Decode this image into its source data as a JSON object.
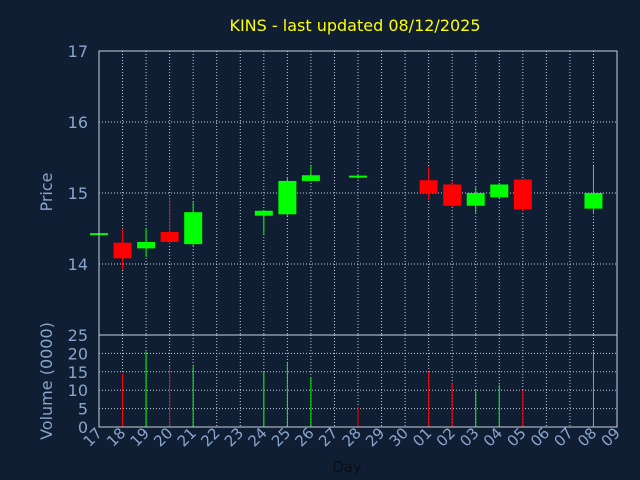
{
  "colors": {
    "background": "#0f1e33",
    "plot_border": "#c8d0dc",
    "grid": "#c8d0dc",
    "title": "#ffff00",
    "axis_text": "#8aa5cc",
    "xlabel": "#0b0f14",
    "up": "#00ff00",
    "down": "#ff0000"
  },
  "chart_data": [
    {
      "type": "candlestick",
      "title": "KINS - last updated 08/12/2025",
      "ylabel": "Price",
      "ylim": [
        13.0,
        17.0
      ],
      "yticks": [
        14,
        15,
        16,
        17
      ],
      "grid": true,
      "x_ticks": [
        "17",
        "18",
        "19",
        "20",
        "21",
        "22",
        "23",
        "24",
        "25",
        "26",
        "27",
        "28",
        "29",
        "30",
        "01",
        "02",
        "03",
        "04",
        "05",
        "06",
        "07",
        "08",
        "09"
      ],
      "candles": [
        {
          "day": "17",
          "open": 14.42,
          "high": 14.42,
          "low": 14.42,
          "close": 14.42
        },
        {
          "day": "18",
          "open": 14.3,
          "high": 14.5,
          "low": 13.93,
          "close": 14.08
        },
        {
          "day": "19",
          "open": 14.22,
          "high": 14.51,
          "low": 14.1,
          "close": 14.31
        },
        {
          "day": "20",
          "open": 14.45,
          "high": 14.94,
          "low": 14.28,
          "close": 14.31
        },
        {
          "day": "21",
          "open": 14.28,
          "high": 14.87,
          "low": 14.25,
          "close": 14.73
        },
        {
          "day": "24",
          "open": 14.68,
          "high": 14.76,
          "low": 14.41,
          "close": 14.75
        },
        {
          "day": "25",
          "open": 14.7,
          "high": 15.22,
          "low": 14.68,
          "close": 15.17
        },
        {
          "day": "26",
          "open": 15.17,
          "high": 15.38,
          "low": 15.16,
          "close": 15.25
        },
        {
          "day": "28",
          "open": 15.23,
          "high": 15.26,
          "low": 15.2,
          "close": 15.23
        },
        {
          "day": "01",
          "open": 15.18,
          "high": 15.37,
          "low": 14.9,
          "close": 15.0
        },
        {
          "day": "02",
          "open": 15.12,
          "high": 15.16,
          "low": 14.8,
          "close": 14.82
        },
        {
          "day": "03",
          "open": 14.82,
          "high": 15.08,
          "low": 14.72,
          "close": 15.0
        },
        {
          "day": "04",
          "open": 14.94,
          "high": 15.14,
          "low": 14.92,
          "close": 15.12
        },
        {
          "day": "05",
          "open": 15.19,
          "high": 15.2,
          "low": 14.74,
          "close": 14.77
        },
        {
          "day": "08",
          "open": 14.78,
          "high": 15.38,
          "low": 14.7,
          "close": 15.0
        }
      ]
    },
    {
      "type": "bar",
      "ylabel": "Volume (0000)",
      "xlabel": "Day",
      "ylim": [
        0,
        25
      ],
      "yticks": [
        0,
        5,
        10,
        15,
        20,
        25
      ],
      "grid": true,
      "x_ticks": [
        "17",
        "18",
        "19",
        "20",
        "21",
        "22",
        "23",
        "24",
        "25",
        "26",
        "27",
        "28",
        "29",
        "30",
        "01",
        "02",
        "03",
        "04",
        "05",
        "06",
        "07",
        "08",
        "09"
      ],
      "bars": [
        {
          "day": "18",
          "value": 14.5,
          "direction": "down"
        },
        {
          "day": "19",
          "value": 20.5,
          "direction": "up"
        },
        {
          "day": "20",
          "value": 16.5,
          "direction": "down"
        },
        {
          "day": "21",
          "value": 16.5,
          "direction": "up"
        },
        {
          "day": "24",
          "value": 15.0,
          "direction": "up"
        },
        {
          "day": "25",
          "value": 17.5,
          "direction": "up"
        },
        {
          "day": "26",
          "value": 13.5,
          "direction": "up"
        },
        {
          "day": "28",
          "value": 5.5,
          "direction": "down"
        },
        {
          "day": "01",
          "value": 15.0,
          "direction": "down"
        },
        {
          "day": "02",
          "value": 12.0,
          "direction": "down"
        },
        {
          "day": "03",
          "value": 10.0,
          "direction": "up"
        },
        {
          "day": "04",
          "value": 11.5,
          "direction": "up"
        },
        {
          "day": "05",
          "value": 10.0,
          "direction": "down"
        },
        {
          "day": "08",
          "value": 20.5,
          "direction": "up"
        }
      ]
    }
  ]
}
